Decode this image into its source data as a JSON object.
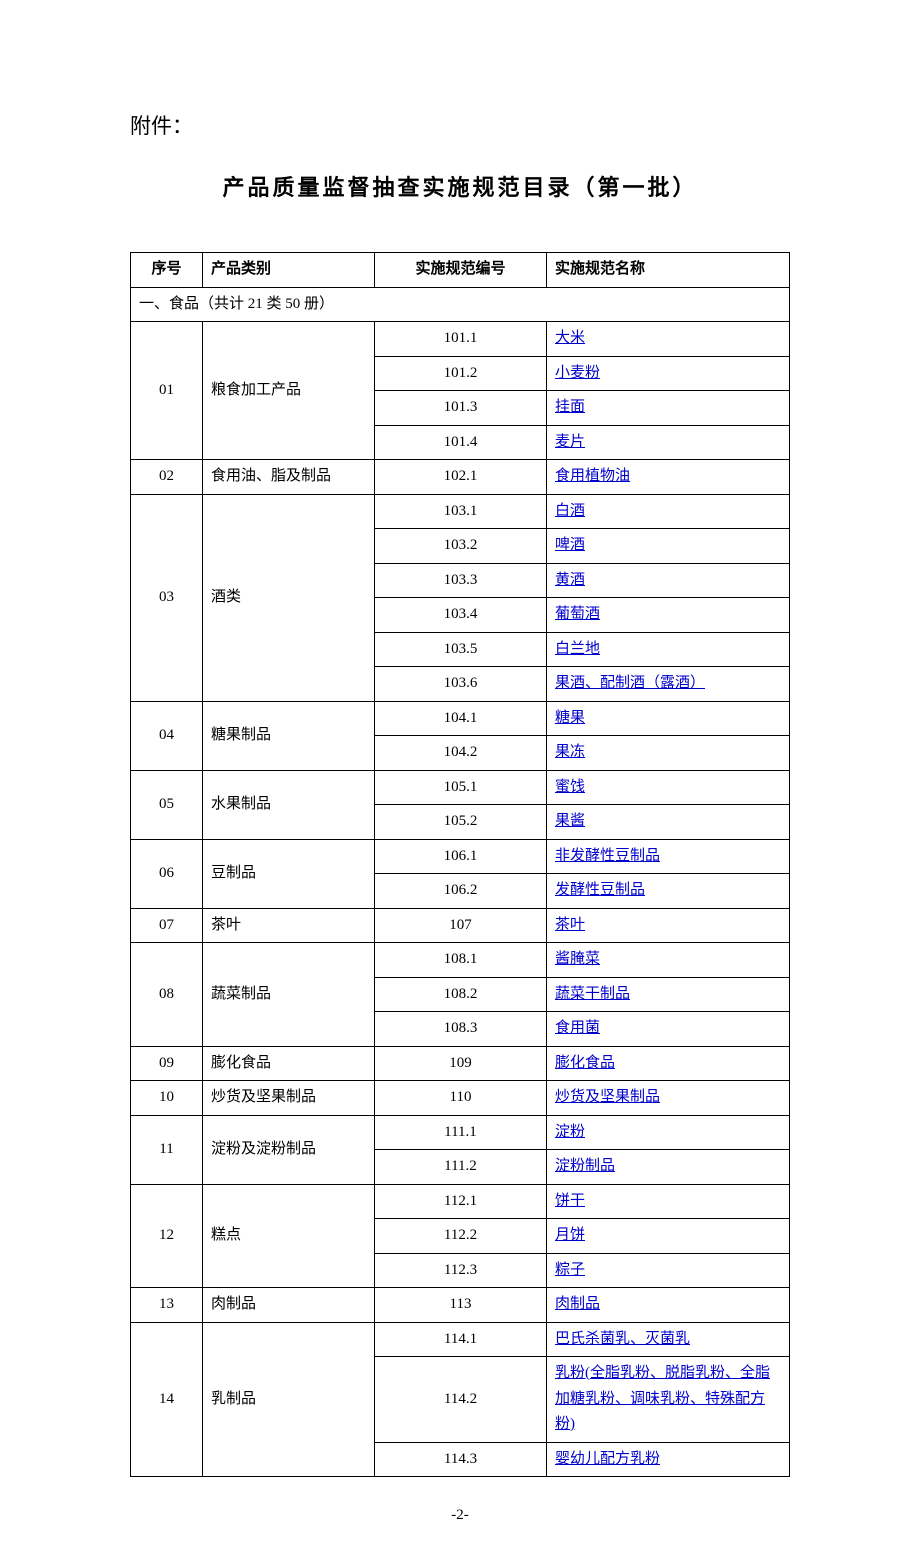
{
  "prefix": "附件：",
  "title": "产品质量监督抽查实施规范目录（第一批）",
  "headers": {
    "seq": "序号",
    "category": "产品类别",
    "code": "实施规范编号",
    "name": "实施规范名称"
  },
  "section": "一、食品（共计 21 类 50 册）",
  "groups": [
    {
      "seq": "01",
      "category": "粮食加工产品",
      "items": [
        {
          "code": "101.1",
          "name": "大米"
        },
        {
          "code": "101.2",
          "name": "小麦粉"
        },
        {
          "code": "101.3",
          "name": "挂面"
        },
        {
          "code": "101.4",
          "name": "麦片"
        }
      ]
    },
    {
      "seq": "02",
      "category": "食用油、脂及制品",
      "items": [
        {
          "code": "102.1",
          "name": "食用植物油"
        }
      ]
    },
    {
      "seq": "03",
      "category": "酒类",
      "items": [
        {
          "code": "103.1",
          "name": "白酒"
        },
        {
          "code": "103.2",
          "name": "啤酒"
        },
        {
          "code": "103.3",
          "name": "黄酒"
        },
        {
          "code": "103.4",
          "name": "葡萄酒"
        },
        {
          "code": "103.5",
          "name": "白兰地"
        },
        {
          "code": "103.6",
          "name": "果酒、配制酒（露酒）"
        }
      ]
    },
    {
      "seq": "04",
      "category": "糖果制品",
      "items": [
        {
          "code": "104.1",
          "name": "糖果"
        },
        {
          "code": "104.2",
          "name": "果冻"
        }
      ]
    },
    {
      "seq": "05",
      "category": "水果制品",
      "items": [
        {
          "code": "105.1",
          "name": "蜜饯"
        },
        {
          "code": "105.2",
          "name": "果酱"
        }
      ]
    },
    {
      "seq": "06",
      "category": "豆制品",
      "items": [
        {
          "code": "106.1",
          "name": "非发酵性豆制品"
        },
        {
          "code": "106.2",
          "name": "发酵性豆制品"
        }
      ]
    },
    {
      "seq": "07",
      "category": "茶叶",
      "items": [
        {
          "code": "107",
          "name": "茶叶"
        }
      ]
    },
    {
      "seq": "08",
      "category": "蔬菜制品",
      "items": [
        {
          "code": "108.1",
          "name": "酱腌菜"
        },
        {
          "code": "108.2",
          "name": "蔬菜干制品"
        },
        {
          "code": "108.3",
          "name": "食用菌"
        }
      ]
    },
    {
      "seq": "09",
      "category": "膨化食品",
      "items": [
        {
          "code": "109",
          "name": "膨化食品"
        }
      ]
    },
    {
      "seq": "10",
      "category": "炒货及坚果制品",
      "items": [
        {
          "code": "110",
          "name": "炒货及坚果制品"
        }
      ]
    },
    {
      "seq": "11",
      "category": "淀粉及淀粉制品",
      "items": [
        {
          "code": "111.1",
          "name": "淀粉"
        },
        {
          "code": "111.2",
          "name": "淀粉制品"
        }
      ]
    },
    {
      "seq": "12",
      "category": "糕点",
      "items": [
        {
          "code": "112.1",
          "name": "饼干"
        },
        {
          "code": "112.2",
          "name": "月饼"
        },
        {
          "code": "112.3",
          "name": "粽子"
        }
      ]
    },
    {
      "seq": "13",
      "category": "肉制品",
      "items": [
        {
          "code": "113",
          "name": "肉制品"
        }
      ]
    },
    {
      "seq": "14",
      "category": "乳制品",
      "items": [
        {
          "code": "114.1",
          "name": "巴氏杀菌乳、灭菌乳"
        },
        {
          "code": "114.2",
          "name": "乳粉(全脂乳粉、脱脂乳粉、全脂加糖乳粉、调味乳粉、特殊配方粉)"
        },
        {
          "code": "114.3",
          "name": "婴幼儿配方乳粉"
        }
      ]
    }
  ],
  "pageNumber": "-2-",
  "linkColor": "#0000cc"
}
